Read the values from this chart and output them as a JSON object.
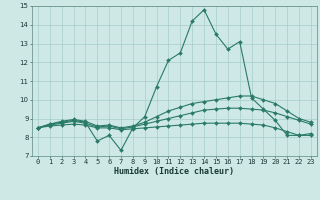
{
  "xlabel": "Humidex (Indice chaleur)",
  "x": [
    0,
    1,
    2,
    3,
    4,
    5,
    6,
    7,
    8,
    9,
    10,
    11,
    12,
    13,
    14,
    15,
    16,
    17,
    18,
    19,
    20,
    21,
    22,
    23
  ],
  "line1": [
    8.5,
    8.7,
    8.8,
    8.9,
    8.8,
    7.8,
    8.1,
    7.3,
    8.5,
    9.1,
    10.7,
    12.1,
    12.5,
    14.2,
    14.8,
    13.5,
    12.7,
    13.1,
    10.1,
    9.5,
    8.9,
    8.1,
    8.1,
    8.2
  ],
  "line2": [
    8.5,
    8.7,
    8.85,
    8.95,
    8.85,
    8.6,
    8.65,
    8.5,
    8.6,
    8.8,
    9.1,
    9.4,
    9.6,
    9.8,
    9.9,
    10.0,
    10.1,
    10.2,
    10.2,
    10.0,
    9.8,
    9.4,
    9.0,
    8.8
  ],
  "line3": [
    8.5,
    8.65,
    8.75,
    8.85,
    8.75,
    8.55,
    8.6,
    8.45,
    8.55,
    8.7,
    8.85,
    9.0,
    9.15,
    9.3,
    9.45,
    9.5,
    9.55,
    9.55,
    9.5,
    9.45,
    9.3,
    9.1,
    8.9,
    8.7
  ],
  "line4": [
    8.5,
    8.6,
    8.65,
    8.7,
    8.65,
    8.5,
    8.5,
    8.4,
    8.45,
    8.5,
    8.55,
    8.6,
    8.65,
    8.7,
    8.75,
    8.75,
    8.75,
    8.75,
    8.7,
    8.65,
    8.5,
    8.3,
    8.1,
    8.1
  ],
  "line_color": "#2a7a68",
  "bg_color": "#cde8e5",
  "grid_color": "#a8cdc9",
  "ylim": [
    7,
    15
  ],
  "xlim": [
    0,
    23
  ]
}
